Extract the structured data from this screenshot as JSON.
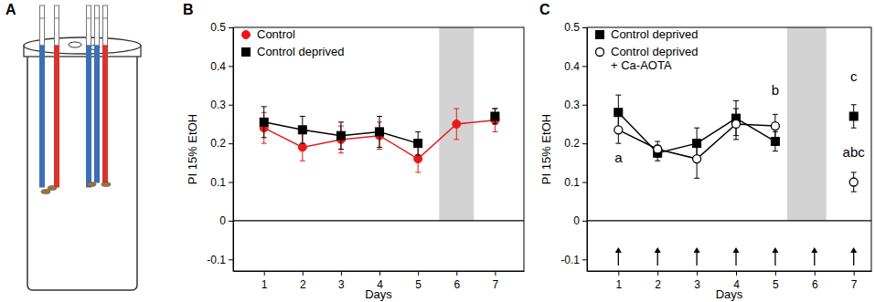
{
  "chart_data": [
    {
      "type": "diagram",
      "title": "A"
    },
    {
      "type": "line",
      "title": "B",
      "x": [
        1,
        2,
        3,
        4,
        5,
        6,
        7
      ],
      "xlim": [
        0.2,
        7.75
      ],
      "ylim": [
        -0.13,
        0.5
      ],
      "xticks": [
        1,
        2,
        3,
        4,
        5,
        6,
        7
      ],
      "yticks": [
        -0.1,
        0,
        0.1,
        0.2,
        0.3,
        0.4,
        0.5
      ],
      "xlabel": "Days",
      "ylabel": "PI 15% EtOH",
      "legend": "upper left",
      "shaded_x": [
        5.55,
        6.45
      ],
      "reference_y": 0,
      "series": [
        {
          "name": "Control",
          "color": "#e8191a",
          "marker": "circle",
          "values": [
            0.24,
            0.19,
            0.21,
            0.22,
            0.16,
            0.25,
            0.26
          ],
          "errors": [
            0.04,
            0.035,
            0.035,
            0.035,
            0.035,
            0.04,
            0.03
          ]
        },
        {
          "name": "Control deprived",
          "color": "#000000",
          "marker": "square",
          "values": [
            0.255,
            0.235,
            0.22,
            0.23,
            0.2,
            null,
            0.27
          ],
          "errors": [
            0.04,
            0.035,
            0.035,
            0.04,
            0.03,
            null,
            0.02
          ]
        }
      ]
    },
    {
      "type": "line",
      "title": "C",
      "x": [
        1,
        2,
        3,
        4,
        5,
        6,
        7
      ],
      "xlim": [
        0.2,
        7.45
      ],
      "ylim": [
        -0.13,
        0.5
      ],
      "xticks": [
        1,
        2,
        3,
        4,
        5,
        6,
        7
      ],
      "yticks": [
        -0.1,
        0,
        0.1,
        0.2,
        0.3,
        0.4,
        0.5
      ],
      "xlabel": "Days",
      "ylabel": "PI 15% EtOH",
      "legend": "upper left",
      "shaded_x": [
        5.3,
        6.3
      ],
      "reference_y": 0,
      "arrows": [
        1,
        2,
        3,
        4,
        5,
        6,
        7
      ],
      "series": [
        {
          "name": "Control deprived",
          "color": "#000000",
          "marker": "square",
          "values": [
            0.28,
            0.175,
            0.2,
            0.265,
            0.205,
            null,
            0.27
          ],
          "errors": [
            0.045,
            0.02,
            0.04,
            0.045,
            0.025,
            null,
            0.03
          ]
        },
        {
          "name": "Control deprived\n+ Ca-AOTA",
          "color": "#000000",
          "marker": "circle-open",
          "values": [
            0.235,
            0.185,
            0.16,
            0.25,
            0.245,
            null,
            0.1
          ],
          "errors": [
            0.035,
            0.02,
            0.05,
            0.04,
            0.03,
            null,
            0.025
          ]
        }
      ],
      "annotations": [
        {
          "text": "a",
          "x": 1,
          "y": 0.15
        },
        {
          "text": "b",
          "x": 5,
          "y": 0.325
        },
        {
          "text": "c",
          "x": 7,
          "y": 0.36
        },
        {
          "text": "abc",
          "x": 7,
          "y": 0.165
        }
      ]
    }
  ]
}
